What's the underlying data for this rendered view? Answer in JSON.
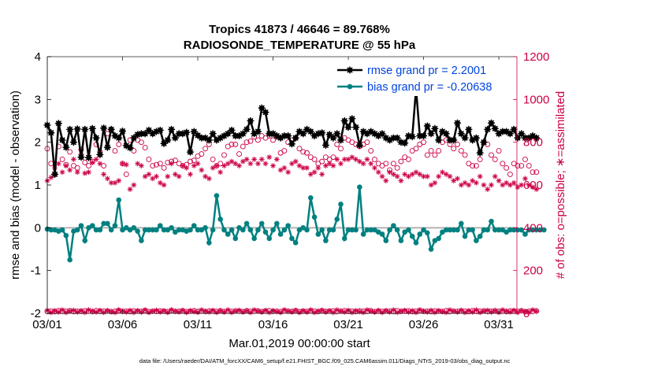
{
  "chart_data": {
    "type": "line",
    "title": "Tropics 41873 / 46646 = 89.768%",
    "subtitle": "RADIOSONDE_TEMPERATURE @ 55 hPa",
    "xlabel": "Mar.01,2019 00:00:00 start",
    "ylabel": "rmse and bias (model - observation)",
    "y2label": "# of obs: o=possible; ∗=assimilated",
    "footnote": "data file: /Users/raeder/DAI/ATM_forcXX/CAM6_setup/f.e21.FHIST_BGC.f09_025.CAM6assim.011/Diags_NTrS_2019-03/obs_diag_output.nc",
    "xlim": [
      0,
      31.2
    ],
    "ylim": [
      -2,
      4
    ],
    "y2lim": [
      0,
      1200
    ],
    "xticks": [
      0,
      5,
      10,
      15,
      20,
      25,
      30
    ],
    "xticklabels": [
      "03/01",
      "03/06",
      "03/11",
      "03/16",
      "03/21",
      "03/26",
      "03/31"
    ],
    "yticks": [
      -2,
      -1,
      0,
      1,
      2,
      3,
      4
    ],
    "y2ticks": [
      0,
      200,
      400,
      600,
      800,
      1000,
      1200
    ],
    "x_step_days": 0.25,
    "series": [
      {
        "name": "rmse grand pr = 2.2001",
        "axis": "left",
        "color": "#000000",
        "marker": "asterisk",
        "values": [
          2.4,
          2.22,
          1.25,
          2.44,
          2.05,
          1.88,
          2.3,
          2.0,
          2.31,
          1.65,
          2.3,
          1.64,
          2.32,
          2.1,
          1.71,
          2.33,
          1.88,
          2.3,
          2.15,
          2.1,
          2.26,
          1.92,
          1.87,
          2.1,
          2.18,
          2.2,
          2.2,
          2.28,
          2.2,
          2.25,
          2.28,
          1.97,
          2.05,
          2.3,
          2.1,
          2.2,
          2.2,
          2.23,
          1.77,
          2.25,
          2.16,
          2.1,
          2.1,
          2.05,
          2.2,
          2.05,
          2.1,
          2.15,
          2.2,
          2.28,
          2.15,
          2.15,
          2.2,
          2.3,
          2.5,
          2.2,
          2.25,
          2.8,
          2.7,
          2.2,
          2.2,
          2.15,
          2.1,
          2.15,
          2.15,
          1.96,
          2.1,
          2.25,
          2.2,
          2.3,
          2.25,
          2.15,
          2.2,
          2.22,
          1.93,
          2.18,
          2.1,
          2.2,
          2.05,
          2.5,
          2.35,
          2.55,
          2.35,
          1.93,
          2.25,
          2.2,
          2.25,
          2.2,
          2.15,
          2.2,
          2.1,
          2.05,
          2.1,
          2.1,
          2.0,
          1.98,
          2.15,
          2.13,
          3.25,
          2.15,
          2.15,
          2.38,
          2.2,
          2.32,
          2.05,
          2.25,
          2.2,
          2.05,
          2.05,
          2.45,
          2.2,
          2.1,
          2.3,
          2.05,
          2.1,
          1.75,
          2.0,
          2.3,
          2.45,
          2.32,
          2.2,
          2.25,
          2.25,
          2.2,
          2.3,
          2.1,
          2.2,
          2.1,
          2.1,
          2.15,
          2.1
        ]
      },
      {
        "name": "bias grand pr = -0.20638",
        "axis": "left",
        "color": "#008080",
        "marker": "dot",
        "values": [
          -0.03,
          -0.05,
          -0.05,
          -0.08,
          -0.05,
          -0.18,
          -0.75,
          -0.08,
          -0.05,
          0.05,
          -0.3,
          0.0,
          0.05,
          -0.05,
          -0.05,
          0.1,
          0.1,
          -0.05,
          0.05,
          0.65,
          -0.05,
          0.0,
          -0.05,
          0.0,
          -0.08,
          -0.3,
          -0.05,
          -0.05,
          -0.05,
          -0.05,
          0.05,
          -0.05,
          -0.05,
          0.0,
          -0.1,
          -0.05,
          -0.05,
          -0.08,
          -0.05,
          0.05,
          -0.05,
          -0.05,
          0.0,
          -0.35,
          -0.05,
          0.75,
          0.2,
          -0.05,
          -0.15,
          -0.05,
          -0.25,
          0.0,
          -0.05,
          0.1,
          -0.05,
          -0.25,
          -0.05,
          0.1,
          -0.1,
          -0.25,
          -0.05,
          0.1,
          -0.15,
          -0.05,
          0.05,
          -0.25,
          -0.35,
          -0.05,
          0.0,
          -0.05,
          0.7,
          0.25,
          -0.15,
          -0.05,
          -0.3,
          -0.05,
          -0.05,
          0.2,
          0.55,
          -0.25,
          -0.05,
          -0.05,
          -0.05,
          0.95,
          -0.15,
          -0.05,
          -0.05,
          -0.05,
          -0.1,
          -0.15,
          -0.3,
          -0.05,
          0.05,
          -0.05,
          -0.3,
          -0.1,
          -0.05,
          -0.2,
          -0.35,
          -0.15,
          -0.05,
          -0.12,
          -0.5,
          -0.3,
          -0.25,
          -0.1,
          -0.05,
          -0.05,
          -0.05,
          -0.05,
          0.1,
          -0.2,
          -0.05,
          -0.05,
          -0.3,
          -0.2,
          -0.05,
          -0.05,
          0.15,
          -0.05,
          -0.05,
          -0.05,
          -0.1,
          -0.05,
          -0.05,
          -0.05,
          -0.05,
          -0.15,
          -0.05,
          -0.05,
          -0.05,
          -0.05,
          -0.05
        ]
      },
      {
        "name": "obs possible",
        "axis": "right",
        "color": "#cc0044",
        "marker": "circle-open",
        "values": [
          770,
          700,
          650,
          780,
          720,
          695,
          755,
          690,
          680,
          765,
          705,
          690,
          710,
          790,
          755,
          690,
          840,
          860,
          760,
          790,
          700,
          650,
          810,
          760,
          810,
          800,
          775,
          720,
          690,
          695,
          700,
          680,
          705,
          710,
          715,
          700,
          690,
          695,
          710,
          715,
          735,
          745,
          770,
          790,
          720,
          690,
          700,
          740,
          780,
          790,
          790,
          745,
          780,
          800,
          805,
          825,
          810,
          830,
          820,
          830,
          810,
          825,
          750,
          760,
          800,
          810,
          820,
          770,
          755,
          750,
          730,
          720,
          700,
          710,
          730,
          720,
          730,
          790,
          770,
          820,
          810,
          800,
          790,
          780,
          790,
          800,
          760,
          720,
          700,
          690,
          700,
          670,
          700,
          680,
          710,
          730,
          720,
          760,
          770,
          790,
          800,
          740,
          760,
          740,
          760,
          800,
          810,
          790,
          770,
          790,
          760,
          740,
          700,
          690,
          690,
          720,
          800,
          790,
          740,
          720,
          760,
          700,
          680,
          650,
          700,
          690,
          690,
          720,
          690,
          660,
          660
        ]
      },
      {
        "name": "obs assimilated",
        "axis": "right",
        "color": "#cc0044",
        "marker": "asterisk",
        "values": [
          620,
          635,
          680,
          700,
          660,
          690,
          670,
          720,
          660,
          745,
          655,
          660,
          705,
          720,
          700,
          650,
          630,
          610,
          610,
          620,
          700,
          695,
          580,
          600,
          700,
          690,
          640,
          650,
          630,
          640,
          610,
          600,
          640,
          700,
          650,
          640,
          690,
          680,
          650,
          690,
          700,
          670,
          640,
          630,
          680,
          690,
          660,
          690,
          700,
          710,
          700,
          690,
          710,
          720,
          700,
          720,
          700,
          720,
          700,
          730,
          690,
          720,
          670,
          680,
          660,
          700,
          710,
          690,
          680,
          680,
          650,
          660,
          680,
          650,
          690,
          700,
          690,
          720,
          700,
          720,
          720,
          730,
          720,
          710,
          700,
          720,
          700,
          680,
          660,
          640,
          620,
          660,
          650,
          640,
          620,
          650,
          640,
          650,
          660,
          650,
          640,
          640,
          600,
          610,
          640,
          660,
          650,
          640,
          620,
          630,
          600,
          610,
          600,
          620,
          610,
          640,
          600,
          580,
          600,
          640,
          620,
          600,
          610,
          600,
          610,
          590,
          600,
          630,
          600,
          590,
          580
        ]
      },
      {
        "name": "obs near zero possible",
        "axis": "right",
        "color": "#cc0044",
        "marker": "circle-open",
        "values": [
          8,
          10,
          8,
          12,
          9,
          10,
          12,
          8,
          10,
          9,
          11,
          10,
          8,
          12,
          9,
          10,
          11,
          8,
          10,
          12,
          9,
          10,
          8,
          11,
          10,
          9,
          12,
          8,
          10,
          9,
          11,
          10,
          8,
          12,
          9,
          10,
          11,
          8,
          10,
          12,
          9,
          10,
          8,
          11,
          10,
          9,
          12,
          8,
          10,
          9,
          11,
          10,
          8,
          12,
          9,
          10,
          11,
          8,
          10,
          12,
          9,
          10,
          8,
          11,
          10,
          9,
          12,
          8,
          10,
          9,
          11,
          10,
          8,
          12,
          9,
          10,
          11,
          8,
          10,
          12,
          9,
          10,
          8,
          11,
          10,
          9,
          12,
          8,
          10,
          9,
          11,
          10,
          8,
          12,
          9,
          10,
          11,
          8,
          10,
          12,
          9,
          10,
          8,
          11,
          10,
          9,
          12,
          8,
          10,
          9,
          11,
          10,
          8,
          12,
          9,
          10,
          11,
          8,
          10,
          12,
          9,
          10,
          8,
          11,
          10,
          9,
          12,
          8,
          10,
          9,
          11
        ]
      },
      {
        "name": "obs near zero assimilated",
        "axis": "right",
        "color": "#cc0044",
        "marker": "asterisk",
        "values": [
          14,
          4,
          12,
          6,
          16,
          4,
          10,
          14,
          6,
          12,
          4,
          16,
          10,
          6,
          14,
          4,
          12,
          8,
          4,
          16,
          10,
          6,
          14,
          4,
          12,
          6,
          16,
          4,
          10,
          14,
          6,
          12,
          4,
          16,
          10,
          6,
          14,
          4,
          12,
          8,
          4,
          16,
          10,
          6,
          14,
          4,
          12,
          6,
          16,
          4,
          10,
          14,
          6,
          12,
          4,
          16,
          10,
          6,
          14,
          4,
          12,
          8,
          4,
          16,
          10,
          6,
          14,
          4,
          12,
          6,
          16,
          4,
          10,
          14,
          6,
          12,
          4,
          16,
          10,
          6,
          14,
          4,
          12,
          8,
          4,
          16,
          10,
          6,
          14,
          4,
          12,
          6,
          16,
          4,
          10,
          14,
          6,
          12,
          4,
          16,
          10,
          6,
          14,
          4,
          12,
          8,
          4,
          16,
          10,
          6,
          14,
          4,
          12,
          6,
          16,
          4,
          10,
          14,
          6,
          12,
          4,
          16,
          10,
          6,
          14,
          4,
          12,
          8,
          4,
          16,
          10
        ]
      }
    ],
    "legend": [
      "rmse grand pr = 2.2001",
      "bias grand pr = -0.20638"
    ],
    "legend_position": "top-right",
    "zero_line": 0,
    "colors": {
      "left_axis": "#000000",
      "right_axis": "#cc0044",
      "legend_text": "#0044dd",
      "rmse": "#000000",
      "bias": "#008080",
      "obs": "#cc0044",
      "zero_line": "#b3b3b3"
    }
  }
}
